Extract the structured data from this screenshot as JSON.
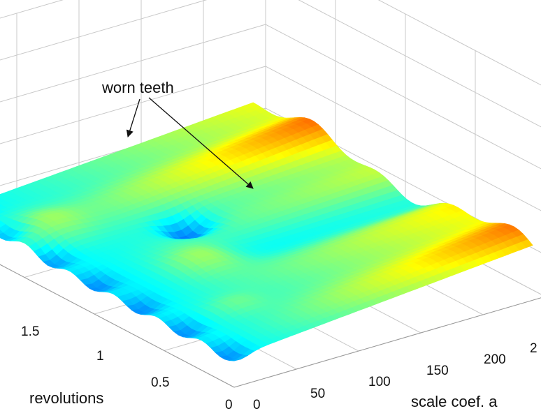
{
  "chart_data": {
    "type": "surface3d",
    "title": "",
    "xlabel": "scale coef. a",
    "ylabel": "revolutions",
    "x_ticks": [
      "0",
      "50",
      "100",
      "150",
      "200",
      "2"
    ],
    "y_ticks": [
      "0",
      "0.5",
      "1",
      "1.5"
    ],
    "xlim": [
      0,
      250
    ],
    "ylim": [
      0,
      2
    ],
    "grid": true,
    "colormap": "jet",
    "annotations": [
      {
        "text": "worn teeth",
        "targets": [
          {
            "a": 20,
            "rev": 1.55
          },
          {
            "a": 65,
            "rev": 0.85
          }
        ]
      }
    ],
    "ridges": [
      {
        "rev": 1.55,
        "peak_a": 25
      },
      {
        "rev": 0.85,
        "peak_a": 70
      },
      {
        "rev": 0.4,
        "peak_a": 45
      }
    ],
    "colors": {
      "low": "#0040ff",
      "high": "#800000"
    }
  }
}
